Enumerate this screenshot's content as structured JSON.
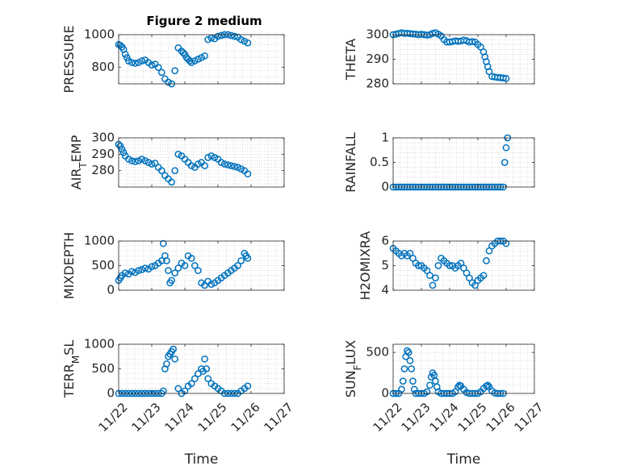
{
  "figure_title": "Figure 2 medium",
  "marker_color": "#0072bd",
  "x_tick_labels": [
    "11/22",
    "11/23",
    "11/24",
    "11/25",
    "11/26",
    "11/27"
  ],
  "chart_data": [
    {
      "type": "scatter",
      "title": "Figure 2 medium",
      "ylabel": "PRESSURE",
      "xlabel": "",
      "xlim": [
        0,
        5
      ],
      "ylim": [
        700,
        1000
      ],
      "yticks": [
        800,
        1000
      ],
      "grid": true,
      "x": [
        0.0,
        0.05,
        0.1,
        0.15,
        0.2,
        0.25,
        0.3,
        0.4,
        0.5,
        0.6,
        0.7,
        0.8,
        0.9,
        1.0,
        1.1,
        1.2,
        1.3,
        1.4,
        1.5,
        1.6,
        1.7,
        1.8,
        1.9,
        1.95,
        2.0,
        2.05,
        2.1,
        2.15,
        2.2,
        2.3,
        2.4,
        2.5,
        2.6,
        2.7,
        2.8,
        2.9,
        3.0,
        3.1,
        3.2,
        3.3,
        3.4,
        3.5,
        3.6,
        3.7,
        3.8,
        3.9
      ],
      "y": [
        940,
        935,
        925,
        910,
        880,
        860,
        840,
        830,
        825,
        830,
        840,
        845,
        830,
        815,
        820,
        800,
        770,
        730,
        710,
        700,
        780,
        920,
        900,
        890,
        880,
        860,
        850,
        840,
        830,
        840,
        850,
        860,
        870,
        970,
        980,
        975,
        990,
        995,
        1000,
        1000,
        995,
        990,
        985,
        970,
        960,
        950
      ]
    },
    {
      "type": "scatter",
      "ylabel": "THETA",
      "xlabel": "",
      "xlim": [
        0,
        5
      ],
      "ylim": [
        280,
        300
      ],
      "yticks": [
        280,
        290,
        300
      ],
      "grid": true,
      "x": [
        0.0,
        0.1,
        0.2,
        0.3,
        0.4,
        0.5,
        0.6,
        0.7,
        0.8,
        0.9,
        1.0,
        1.1,
        1.2,
        1.3,
        1.4,
        1.5,
        1.6,
        1.7,
        1.8,
        1.9,
        2.0,
        2.1,
        2.2,
        2.3,
        2.4,
        2.5,
        2.6,
        2.7,
        2.8,
        2.9,
        3.0,
        3.1,
        3.2,
        3.25,
        3.3,
        3.35,
        3.4,
        3.5,
        3.6,
        3.7,
        3.8,
        3.9,
        4.0
      ],
      "y": [
        300,
        300.2,
        300.5,
        300.8,
        300.5,
        300.6,
        300.4,
        300.3,
        300.2,
        300,
        300.2,
        300,
        299.8,
        300,
        300.5,
        300.8,
        300.2,
        299.5,
        298,
        297,
        297,
        297.2,
        297.5,
        297.3,
        297.4,
        297.8,
        297.5,
        297,
        297.2,
        297,
        296,
        295,
        293,
        291,
        289,
        287,
        285,
        283,
        282.8,
        282.6,
        282.5,
        282.4,
        282.2
      ]
    },
    {
      "type": "scatter",
      "ylabel": "AIR_TEMP",
      "xlabel": "",
      "xlim": [
        0,
        5
      ],
      "ylim": [
        270,
        300
      ],
      "yticks": [
        280,
        290,
        300
      ],
      "grid": true,
      "x": [
        0.0,
        0.05,
        0.1,
        0.15,
        0.2,
        0.3,
        0.4,
        0.5,
        0.6,
        0.7,
        0.8,
        0.9,
        1.0,
        1.1,
        1.2,
        1.3,
        1.4,
        1.5,
        1.6,
        1.7,
        1.8,
        1.9,
        2.0,
        2.1,
        2.2,
        2.3,
        2.4,
        2.5,
        2.6,
        2.7,
        2.8,
        2.9,
        3.0,
        3.1,
        3.2,
        3.3,
        3.4,
        3.5,
        3.6,
        3.7,
        3.8,
        3.9
      ],
      "y": [
        296,
        295,
        293,
        291,
        289,
        287,
        286,
        285.5,
        286,
        287,
        286,
        285,
        284,
        284.5,
        282,
        280,
        277,
        275,
        273,
        280,
        290,
        289,
        287,
        285,
        283,
        282,
        284,
        285,
        283,
        288,
        289,
        288,
        287,
        285,
        284,
        283.5,
        283,
        282.5,
        282,
        281,
        280,
        278
      ]
    },
    {
      "type": "scatter",
      "ylabel": "RAINFALL",
      "xlabel": "",
      "xlim": [
        0,
        5
      ],
      "ylim": [
        0,
        1
      ],
      "yticks": [
        0,
        0.5,
        1
      ],
      "grid": true,
      "x": [
        0.0,
        0.1,
        0.2,
        0.3,
        0.4,
        0.5,
        0.6,
        0.7,
        0.8,
        0.9,
        1.0,
        1.1,
        1.2,
        1.3,
        1.4,
        1.5,
        1.6,
        1.7,
        1.8,
        1.9,
        2.0,
        2.1,
        2.2,
        2.3,
        2.4,
        2.5,
        2.6,
        2.7,
        2.8,
        2.9,
        3.0,
        3.1,
        3.2,
        3.3,
        3.4,
        3.5,
        3.6,
        3.7,
        3.8,
        3.9,
        3.95,
        4.0,
        4.05
      ],
      "y": [
        0,
        0,
        0,
        0,
        0,
        0,
        0,
        0,
        0,
        0,
        0,
        0,
        0,
        0,
        0,
        0,
        0,
        0,
        0,
        0,
        0,
        0,
        0,
        0,
        0,
        0,
        0,
        0,
        0,
        0,
        0,
        0,
        0,
        0,
        0,
        0,
        0,
        0,
        0,
        0,
        0.5,
        0.8,
        1
      ]
    },
    {
      "type": "scatter",
      "ylabel": "MIXDEPTH",
      "xlabel": "",
      "xlim": [
        0,
        5
      ],
      "ylim": [
        0,
        1000
      ],
      "yticks": [
        0,
        500,
        1000
      ],
      "grid": true,
      "x": [
        0.0,
        0.05,
        0.1,
        0.2,
        0.3,
        0.4,
        0.5,
        0.6,
        0.7,
        0.8,
        0.9,
        1.0,
        1.1,
        1.2,
        1.3,
        1.35,
        1.4,
        1.45,
        1.5,
        1.55,
        1.6,
        1.7,
        1.8,
        1.9,
        2.0,
        2.1,
        2.2,
        2.3,
        2.4,
        2.5,
        2.6,
        2.7,
        2.8,
        2.9,
        3.0,
        3.1,
        3.2,
        3.3,
        3.4,
        3.5,
        3.6,
        3.7,
        3.8,
        3.85,
        3.9
      ],
      "y": [
        200,
        250,
        300,
        350,
        330,
        380,
        360,
        400,
        420,
        450,
        430,
        480,
        500,
        550,
        600,
        950,
        700,
        600,
        400,
        150,
        200,
        350,
        450,
        550,
        500,
        700,
        650,
        500,
        400,
        150,
        100,
        180,
        120,
        150,
        200,
        250,
        300,
        350,
        400,
        450,
        500,
        600,
        750,
        700,
        650
      ]
    },
    {
      "type": "scatter",
      "ylabel": "H2OMIXRA",
      "xlabel": "",
      "xlim": [
        0,
        5
      ],
      "ylim": [
        4,
        6
      ],
      "yticks": [
        4,
        5,
        6
      ],
      "grid": true,
      "x": [
        0.0,
        0.1,
        0.2,
        0.3,
        0.4,
        0.5,
        0.6,
        0.7,
        0.8,
        0.9,
        1.0,
        1.1,
        1.2,
        1.3,
        1.4,
        1.5,
        1.6,
        1.7,
        1.8,
        1.9,
        2.0,
        2.1,
        2.2,
        2.3,
        2.4,
        2.5,
        2.6,
        2.7,
        2.8,
        2.9,
        3.0,
        3.1,
        3.2,
        3.3,
        3.4,
        3.5,
        3.6,
        3.7,
        3.8,
        3.9,
        4.0
      ],
      "y": [
        5.7,
        5.6,
        5.5,
        5.4,
        5.5,
        5.4,
        5.5,
        5.3,
        5.1,
        5.0,
        5.0,
        4.9,
        4.8,
        4.6,
        4.2,
        4.5,
        5.0,
        5.3,
        5.2,
        5.1,
        5.0,
        5.0,
        4.9,
        5.0,
        5.1,
        4.9,
        4.7,
        4.5,
        4.3,
        4.2,
        4.4,
        4.5,
        4.6,
        5.2,
        5.6,
        5.8,
        5.9,
        6.0,
        6.0,
        6.0,
        5.9
      ]
    },
    {
      "type": "scatter",
      "ylabel": "TERR_MSL",
      "xlabel": "Time",
      "xlim": [
        0,
        5
      ],
      "ylim": [
        0,
        1000
      ],
      "yticks": [
        0,
        500,
        1000
      ],
      "grid": true,
      "x": [
        0.0,
        0.1,
        0.2,
        0.3,
        0.4,
        0.5,
        0.6,
        0.7,
        0.8,
        0.9,
        1.0,
        1.1,
        1.2,
        1.3,
        1.35,
        1.4,
        1.45,
        1.5,
        1.55,
        1.6,
        1.65,
        1.7,
        1.8,
        1.9,
        2.0,
        2.1,
        2.2,
        2.3,
        2.4,
        2.5,
        2.55,
        2.6,
        2.65,
        2.7,
        2.8,
        2.9,
        3.0,
        3.1,
        3.2,
        3.3,
        3.4,
        3.5,
        3.6,
        3.7,
        3.8,
        3.9
      ],
      "y": [
        0,
        0,
        0,
        0,
        0,
        0,
        0,
        0,
        0,
        0,
        0,
        0,
        0,
        0,
        50,
        500,
        600,
        750,
        800,
        850,
        900,
        700,
        100,
        0,
        50,
        150,
        200,
        300,
        400,
        500,
        450,
        700,
        500,
        300,
        200,
        150,
        100,
        50,
        0,
        0,
        0,
        0,
        0,
        50,
        100,
        150
      ]
    },
    {
      "type": "scatter",
      "ylabel": "SUN_FLUX",
      "xlabel": "Time",
      "xlim": [
        0,
        5
      ],
      "ylim": [
        0,
        600
      ],
      "yticks": [
        0,
        500
      ],
      "grid": true,
      "x": [
        0.0,
        0.1,
        0.2,
        0.3,
        0.35,
        0.4,
        0.45,
        0.5,
        0.55,
        0.6,
        0.65,
        0.7,
        0.75,
        0.8,
        0.9,
        1.0,
        1.1,
        1.2,
        1.3,
        1.35,
        1.4,
        1.45,
        1.5,
        1.55,
        1.6,
        1.7,
        1.8,
        1.9,
        2.0,
        2.1,
        2.2,
        2.3,
        2.35,
        2.4,
        2.5,
        2.6,
        2.7,
        2.8,
        2.9,
        3.0,
        3.1,
        3.2,
        3.3,
        3.35,
        3.4,
        3.5,
        3.6,
        3.7,
        3.8,
        3.9
      ],
      "y": [
        0,
        0,
        0,
        50,
        150,
        300,
        450,
        520,
        500,
        400,
        300,
        150,
        50,
        0,
        0,
        0,
        0,
        20,
        100,
        200,
        250,
        220,
        150,
        80,
        20,
        0,
        0,
        0,
        0,
        0,
        20,
        80,
        100,
        90,
        50,
        10,
        0,
        0,
        0,
        0,
        20,
        60,
        90,
        100,
        80,
        30,
        5,
        0,
        0,
        0
      ]
    }
  ]
}
